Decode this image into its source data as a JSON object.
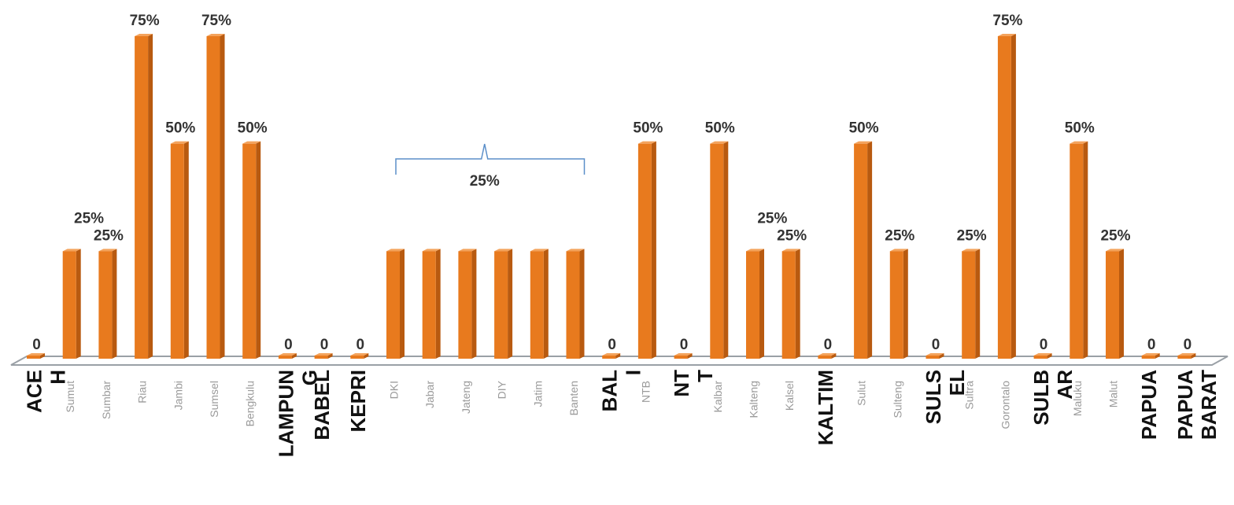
{
  "chart_data": {
    "type": "bar",
    "categories": [
      "Aceh",
      "Sumut",
      "Sumbar",
      "Riau",
      "Jambi",
      "Sumsel",
      "Bengkulu",
      "Lampung",
      "Babel",
      "Kepri",
      "DKI",
      "Jabar",
      "Jateng",
      "DIY",
      "Jatim",
      "Banten",
      "Bali",
      "NTB",
      "NTT",
      "Kalbar",
      "Kalteng",
      "Kalsel",
      "Kaltim",
      "Sulut",
      "Sulteng",
      "Sulsel",
      "Sultra",
      "Gorontalo",
      "Sulbar",
      "Maluku",
      "Malut",
      "Papua",
      "Papua Barat"
    ],
    "values": [
      0,
      25,
      25,
      75,
      50,
      75,
      50,
      0,
      0,
      0,
      25,
      25,
      25,
      25,
      25,
      25,
      0,
      50,
      0,
      50,
      25,
      25,
      0,
      50,
      25,
      0,
      25,
      75,
      0,
      50,
      25,
      0,
      0
    ],
    "value_labels": [
      "0",
      "",
      "25%",
      "75%",
      "50%",
      "75%",
      "50%",
      "0",
      "0",
      "0",
      "",
      "",
      "",
      "",
      "",
      "",
      "0",
      "50%",
      "0",
      "50%",
      "",
      "25%",
      "0",
      "50%",
      "25%",
      "0",
      "25%",
      "75%",
      "0",
      "50%",
      "25%",
      "0",
      "0"
    ],
    "group_labels": [
      {
        "text": "25%",
        "from": "DKI",
        "to": "Banten"
      },
      {
        "text": "25%",
        "from": "Sumut",
        "to": "Sumbar"
      },
      {
        "text": "25%",
        "from": "Kalteng",
        "to": "Kalsel"
      }
    ],
    "axis_labels_light": [
      "Sumut",
      "Sumbar",
      "Riau",
      "Jambi",
      "Sumsel",
      "Bengkulu",
      "DKI",
      "Jabar",
      "Jateng",
      "DIY",
      "Jatim",
      "Banten",
      "NTB",
      "Kalbar",
      "Kalteng",
      "Kalsel",
      "Sulut",
      "Sulteng",
      "Sultra",
      "Gorontalo",
      "Maluku",
      "Malut"
    ],
    "axis_labels_bold": [
      {
        "lines": [
          "ACE",
          "H"
        ],
        "cat": "Aceh"
      },
      {
        "lines": [
          "LAMPUN",
          "G"
        ],
        "cat": "Lampung"
      },
      {
        "lines": [
          "BABEL"
        ],
        "cat": "Babel"
      },
      {
        "lines": [
          "KEPRI"
        ],
        "cat": "Kepri"
      },
      {
        "lines": [
          "BAL",
          "I"
        ],
        "cat": "Bali"
      },
      {
        "lines": [
          "NT",
          "T"
        ],
        "cat": "NTT"
      },
      {
        "lines": [
          "KALTIM"
        ],
        "cat": "Kaltim"
      },
      {
        "lines": [
          "SULS",
          "EL"
        ],
        "cat": "Sulsel"
      },
      {
        "lines": [
          "SULB",
          "AR"
        ],
        "cat": "Sulbar"
      },
      {
        "lines": [
          "PAPUA"
        ],
        "cat": "Papua"
      },
      {
        "lines": [
          "PAPUA",
          "BARAT"
        ],
        "cat": "Papua Barat"
      }
    ],
    "ylim": [
      0,
      75
    ],
    "grid": false,
    "colors": {
      "bar_front": "#e87a1e",
      "bar_side": "#b85a10",
      "bar_top": "#f4a35c",
      "floor": "#9aa0a6",
      "brace": "#5b8fc9"
    }
  }
}
